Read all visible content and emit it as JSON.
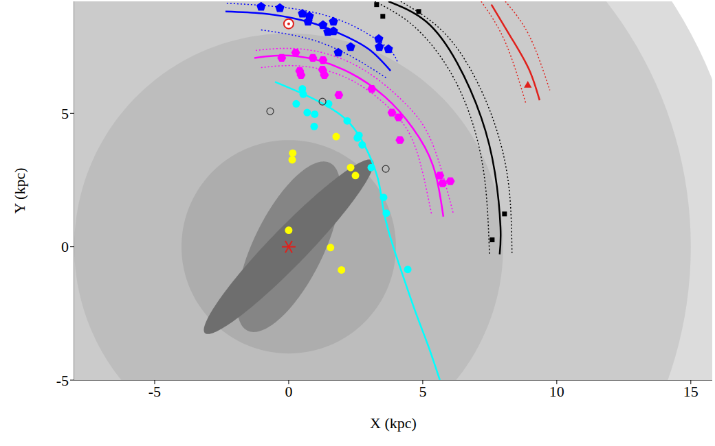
{
  "chart_data": {
    "type": "scatter",
    "x_label": "X (kpc)",
    "y_label": "Y (kpc)",
    "xlim": [
      -8,
      15.8
    ],
    "ylim": [
      -5,
      9.2
    ],
    "xticks": [
      -5,
      0,
      5,
      10,
      15
    ],
    "yticks": [
      -5,
      0,
      5
    ],
    "grid": false,
    "disks": {
      "center": [
        0,
        0
      ],
      "radii": [
        17,
        15,
        8,
        4
      ],
      "colors": [
        "#dcdcdc",
        "#cbcbcb",
        "#bdbdbd",
        "#adadad"
      ]
    },
    "ellipses": [
      {
        "center": [
          0,
          0
        ],
        "semi_axes": [
          3.5,
          1.3
        ],
        "angle": 64,
        "color": "#858585"
      },
      {
        "center": [
          0,
          0
        ],
        "semi_axes": [
          4.5,
          0.7
        ],
        "angle": 46,
        "color": "#6e6e6e"
      }
    ],
    "series": [
      {
        "type": "line",
        "line_style": "solid",
        "color": "#0000ff",
        "x": [
          -2.36,
          -1,
          0,
          1,
          2,
          3,
          3.8
        ],
        "values": [
          8.82,
          8.75,
          8.6,
          8.35,
          7.95,
          7.4,
          6.6
        ]
      },
      {
        "type": "line",
        "line_style": "dotted",
        "color": "#0000ff",
        "x": [
          -2.31,
          0,
          2.05,
          3.59,
          4.05
        ],
        "values": [
          9.13,
          8.95,
          8.44,
          7.54,
          6.95
        ]
      },
      {
        "type": "line",
        "line_style": "dotted",
        "color": "#0000ff",
        "x": [
          -1.03,
          0.77,
          2.31,
          3.64
        ],
        "values": [
          8.13,
          7.79,
          7.15,
          6.33
        ]
      },
      {
        "type": "line",
        "line_style": "solid",
        "color": "#ff00ff",
        "x": [
          -1.28,
          0.26,
          2.05,
          3.59,
          4.62,
          5.38,
          5.77
        ],
        "values": [
          7.08,
          7.15,
          6.64,
          5.62,
          4.46,
          3.05,
          1.13
        ]
      },
      {
        "type": "line",
        "line_style": "dotted",
        "color": "#ff00ff",
        "x": [
          -1.23,
          0.51,
          2.56,
          4.36,
          5.38,
          6.15
        ],
        "values": [
          7.36,
          7.41,
          6.77,
          5.36,
          3.82,
          1.21
        ]
      },
      {
        "type": "line",
        "line_style": "dotted",
        "color": "#ff00ff",
        "x": [
          -1.03,
          0.51,
          2.31,
          3.85,
          4.74,
          5.33
        ],
        "values": [
          6.72,
          6.77,
          6.26,
          5.1,
          3.69,
          1.21
        ]
      },
      {
        "type": "line",
        "line_style": "solid",
        "color": "#00ffff",
        "x": [
          -0.51,
          0.77,
          2.05,
          2.82,
          3.33,
          3.55,
          3.9,
          4.3,
          4.75,
          5.2,
          5.64
        ],
        "values": [
          6.18,
          5.62,
          4.85,
          3.82,
          2.54,
          1.3,
          0,
          -1.2,
          -2.5,
          -3.7,
          -5.0
        ]
      },
      {
        "type": "line",
        "line_style": "solid",
        "color": "#000000",
        "x": [
          3.72,
          5.13,
          6.28,
          7.18,
          7.69,
          7.9,
          7.87
        ],
        "values": [
          9.2,
          8.44,
          6.9,
          4.85,
          2.79,
          0.74,
          -0.28
        ]
      },
      {
        "type": "line",
        "line_style": "dotted",
        "color": "#000000",
        "x": [
          4.18,
          5.64,
          6.79,
          7.69,
          8.21,
          8.33
        ],
        "values": [
          9.2,
          8.18,
          6.64,
          4.59,
          2.28,
          -0.28
        ]
      },
      {
        "type": "line",
        "line_style": "dotted",
        "color": "#000000",
        "x": [
          3.21,
          4.62,
          5.9,
          6.79,
          7.31,
          7.49
        ],
        "values": [
          9.2,
          8.31,
          6.77,
          4.85,
          2.54,
          -0.28
        ]
      },
      {
        "type": "line",
        "line_style": "solid",
        "color": "#e0201b",
        "x": [
          7.56,
          8.33,
          8.97,
          9.36
        ],
        "values": [
          9.08,
          7.79,
          6.64,
          5.49
        ]
      },
      {
        "type": "line",
        "line_style": "dotted",
        "color": "#e0201b",
        "x": [
          8.08,
          8.97,
          9.74
        ],
        "values": [
          9.2,
          7.92,
          5.87
        ]
      },
      {
        "type": "line",
        "line_style": "dotted",
        "color": "#e0201b",
        "x": [
          7.18,
          8.08,
          8.85
        ],
        "values": [
          9.2,
          7.67,
          5.36
        ]
      },
      {
        "type": "scatter",
        "marker": "circle",
        "color": "#ffff00",
        "x": [
          0.15,
          0.13,
          1.77,
          2.31,
          2.49,
          0,
          1.56,
          1.97
        ],
        "values": [
          3.51,
          3.26,
          4.13,
          2.97,
          2.67,
          0.62,
          -0.03,
          -0.87
        ]
      },
      {
        "type": "scatter",
        "marker": "circle",
        "color": "#00ffff",
        "x": [
          0.51,
          0.54,
          0.28,
          0.69,
          0.97,
          0.95,
          1.49,
          2.18,
          2.56,
          2.62,
          2.74,
          3.08,
          3.54,
          3.64,
          4.44
        ],
        "values": [
          5.92,
          5.72,
          5.36,
          5.03,
          4.97,
          4.51,
          5.36,
          4.72,
          4.08,
          4.18,
          3.82,
          2.97,
          1.85,
          1.26,
          -0.85
        ]
      },
      {
        "type": "scatter",
        "marker": "hexagon",
        "color": "#ff00ff",
        "x": [
          -0.26,
          0.26,
          0.41,
          0.46,
          0.9,
          1.28,
          1.26,
          1.33,
          1.87,
          3.1,
          3.85,
          4.1,
          4.15,
          5.64,
          5.74,
          6.03
        ],
        "values": [
          7.08,
          7.28,
          6.59,
          6.44,
          7.08,
          7.0,
          6.64,
          6.44,
          5.69,
          5.92,
          5.03,
          4.85,
          4.0,
          2.67,
          2.38,
          2.46
        ]
      },
      {
        "type": "scatter",
        "marker": "pentagon",
        "color": "#0000ff",
        "x": [
          -1.03,
          -0.33,
          0.51,
          0.77,
          0.72,
          1.28,
          1.46,
          1.67,
          1.67,
          2.31,
          1.85,
          3.36,
          3.38,
          3.72
        ],
        "values": [
          9.0,
          8.95,
          8.74,
          8.64,
          8.44,
          8.31,
          8.05,
          8.08,
          8.44,
          7.49,
          7.28,
          7.79,
          7.49,
          7.41
        ]
      },
      {
        "type": "scatter",
        "marker": "square",
        "color": "#000000",
        "x": [
          3.28,
          3.51,
          4.85,
          8.05,
          7.59
        ],
        "values": [
          9.08,
          8.64,
          8.82,
          1.23,
          0.26
        ]
      },
      {
        "type": "scatter",
        "marker": "open_circle",
        "color": "#333333",
        "x": [
          -0.69,
          1.26,
          3.62
        ],
        "values": [
          5.08,
          5.44,
          2.92
        ]
      },
      {
        "type": "scatter",
        "marker": "triangle",
        "color": "#e0201b",
        "x": [
          8.92
        ],
        "values": [
          6.05
        ]
      },
      {
        "type": "scatter",
        "marker": "sun",
        "color": "#e0201b",
        "x": [
          0
        ],
        "values": [
          8.36
        ]
      },
      {
        "type": "scatter",
        "marker": "asterisk",
        "color": "#e0201b",
        "x": [
          0
        ],
        "values": [
          0
        ]
      }
    ]
  }
}
